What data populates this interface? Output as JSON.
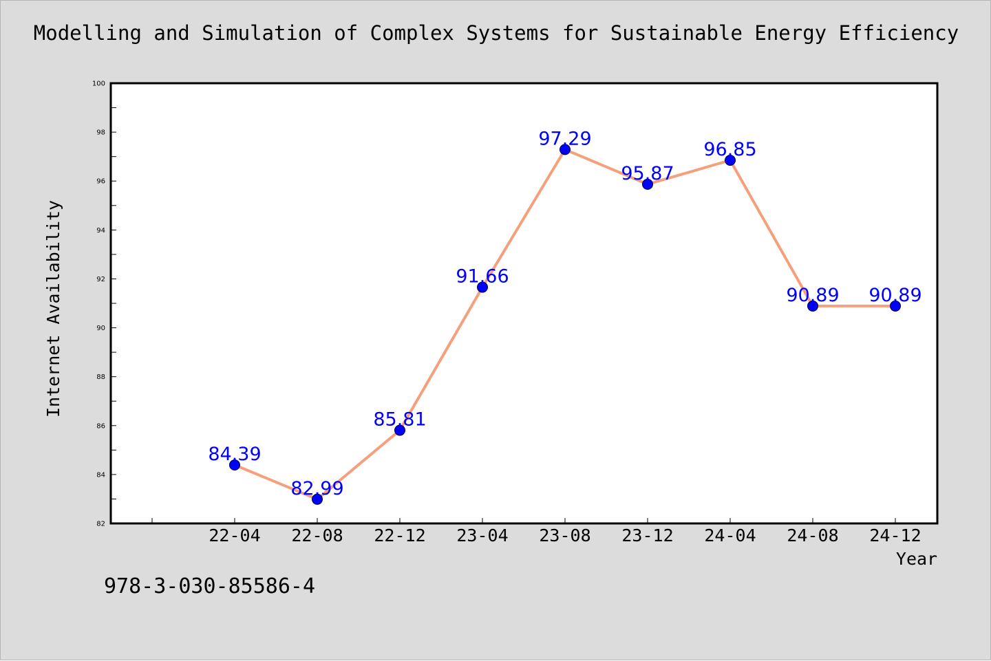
{
  "chart_data": {
    "type": "line",
    "title": "Modelling and Simulation of Complex Systems for Sustainable Energy Efficiency",
    "xlabel": "Year",
    "ylabel": "Internet Availability",
    "categories": [
      "22-04",
      "22-08",
      "22-12",
      "23-04",
      "23-08",
      "23-12",
      "24-04",
      "24-08",
      "24-12"
    ],
    "series": [
      {
        "values": [
          84.39,
          82.99,
          85.81,
          91.66,
          97.29,
          95.87,
          96.85,
          90.89,
          90.89
        ],
        "labels": [
          "84.39",
          "82.99",
          "85.81",
          "91.66",
          "97.29",
          "95.87",
          "96.85",
          "90.89",
          "90.89"
        ],
        "line_color": "#f4a07c",
        "marker_color": "#0000ff"
      }
    ],
    "ylim": [
      82,
      100
    ],
    "yticks": [
      "82",
      "84",
      "86",
      "88",
      "90",
      "92",
      "94",
      "96",
      "98",
      "100"
    ],
    "grid": false
  },
  "footnote": "978-3-030-85586-4",
  "colors": {
    "figure_background": "#dcdcdc",
    "plot_background": "#ffffff",
    "line": "#f4a07c",
    "marker": "#0000ff",
    "data_label": "#0000ff"
  }
}
